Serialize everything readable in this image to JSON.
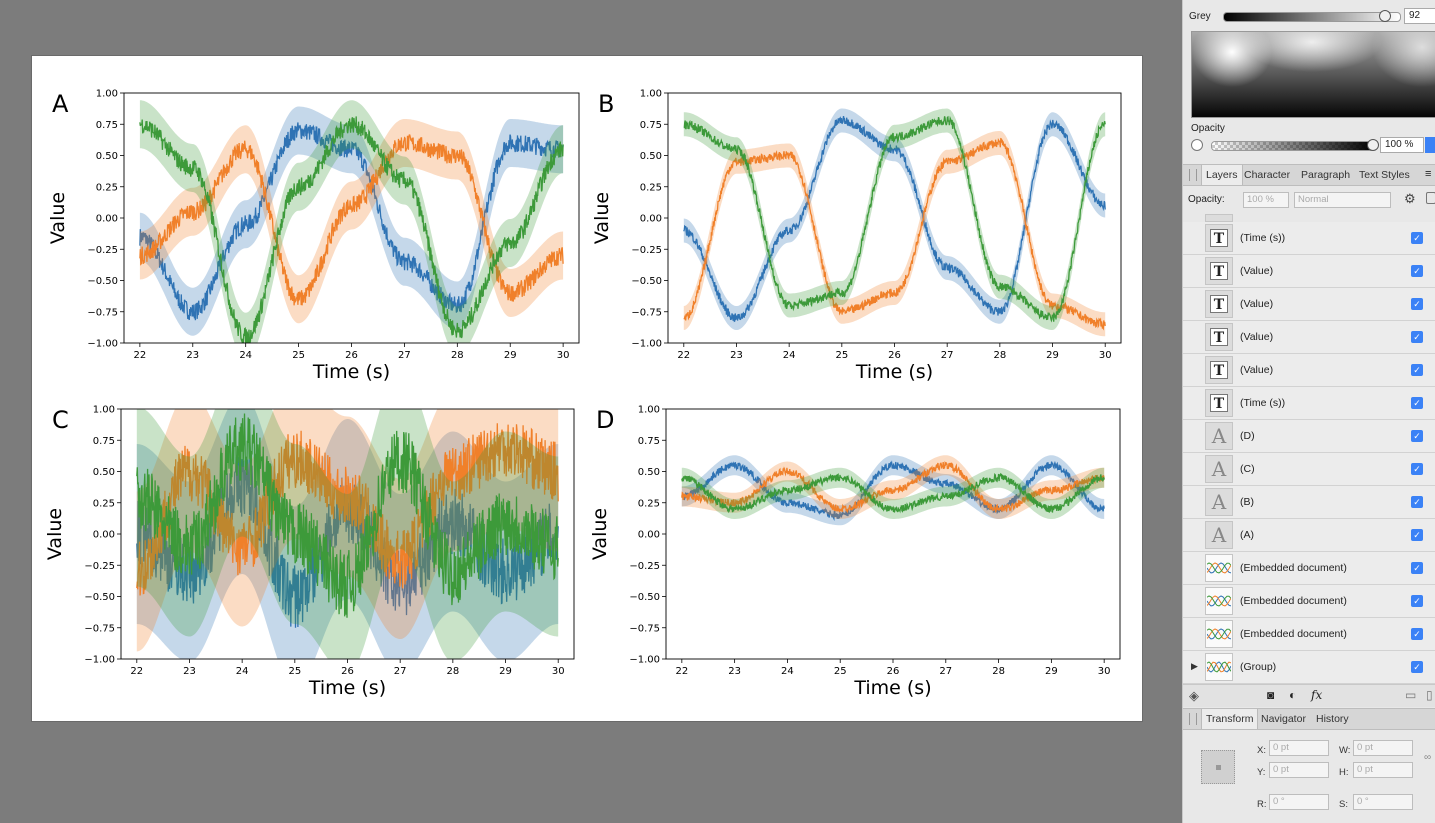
{
  "panel": {
    "color": {
      "grey_label": "Grey",
      "grey_value": "92",
      "grey_level": 0.92,
      "opacity_label": "Opacity",
      "opacity_value": "100 %",
      "opacity_level": 1.0
    },
    "layers_tabs": [
      "Layers",
      "Character",
      "Paragraph",
      "Text Styles"
    ],
    "layers_opacity_label": "Opacity:",
    "layers_opacity_value": "100 %",
    "blend_mode": "Normal",
    "layers": [
      {
        "name": "(Time (s))",
        "kind": "text",
        "visible": true
      },
      {
        "name": "(Value)",
        "kind": "text",
        "visible": true
      },
      {
        "name": "(Value)",
        "kind": "text",
        "visible": true
      },
      {
        "name": "(Value)",
        "kind": "text",
        "visible": true
      },
      {
        "name": "(Value)",
        "kind": "text",
        "visible": true
      },
      {
        "name": "(Time (s))",
        "kind": "text",
        "visible": true
      },
      {
        "name": "(D)",
        "kind": "artistic-text",
        "visible": true
      },
      {
        "name": "(C)",
        "kind": "artistic-text",
        "visible": true
      },
      {
        "name": "(B)",
        "kind": "artistic-text",
        "visible": true
      },
      {
        "name": "(A)",
        "kind": "artistic-text",
        "visible": true
      },
      {
        "name": "(Embedded document)",
        "kind": "embedded",
        "visible": true
      },
      {
        "name": "(Embedded document)",
        "kind": "embedded",
        "visible": true
      },
      {
        "name": "(Embedded document)",
        "kind": "embedded",
        "visible": true
      },
      {
        "name": "(Group)",
        "kind": "group",
        "visible": true
      }
    ],
    "transform_tabs": [
      "Transform",
      "Navigator",
      "History"
    ],
    "transform": {
      "x_label": "X:",
      "x_value": "0 pt",
      "y_label": "Y:",
      "y_value": "0 pt",
      "w_label": "W:",
      "w_value": "0 pt",
      "h_label": "H:",
      "h_value": "0 pt",
      "r_label": "R:",
      "r_value": "0 °",
      "s_label": "S:",
      "s_value": "0 °"
    },
    "icons": [
      "layers-stack-icon",
      "mask-icon",
      "adjustment-icon",
      "fx-icon",
      "new-layer-icon",
      "trash-icon",
      "settings-gear-icon",
      "lock-icon",
      "expand-arrow-icon",
      "link-icon"
    ]
  },
  "figure": {
    "colors": {
      "blue": "#2f73b4",
      "orange": "#f0802a",
      "green": "#3d9a3a"
    },
    "panels": [
      {
        "letter": "A"
      },
      {
        "letter": "B"
      },
      {
        "letter": "C"
      },
      {
        "letter": "D"
      }
    ]
  },
  "chart_data": [
    {
      "type": "line",
      "panel": "A",
      "xlabel": "Time (s)",
      "ylabel": "Value",
      "xlim": [
        21.7,
        30.3
      ],
      "ylim": [
        -1.0,
        1.0
      ],
      "xticks": [
        "22",
        "23",
        "24",
        "25",
        "26",
        "27",
        "28",
        "29",
        "30"
      ],
      "yticks": [
        "−1.00",
        "−0.75",
        "−0.50",
        "−0.25",
        "0.00",
        "0.25",
        "0.50",
        "0.75",
        "1.00"
      ],
      "x": [
        22,
        23,
        24,
        25,
        26,
        27,
        28,
        29,
        30
      ],
      "series": [
        {
          "color": "blue",
          "values": [
            -0.15,
            -0.75,
            -0.05,
            0.7,
            0.55,
            -0.35,
            -0.7,
            0.6,
            0.55
          ],
          "noise": 0.12
        },
        {
          "color": "orange",
          "values": [
            -0.3,
            0.05,
            0.55,
            -0.65,
            0.1,
            0.6,
            0.5,
            -0.6,
            -0.3
          ],
          "noise": 0.12
        },
        {
          "color": "green",
          "values": [
            0.75,
            0.4,
            -0.95,
            0.25,
            0.75,
            0.3,
            -0.9,
            -0.2,
            0.55
          ],
          "noise": 0.12
        }
      ]
    },
    {
      "type": "line",
      "panel": "B",
      "xlabel": "Time (s)",
      "ylabel": "Value",
      "xlim": [
        21.7,
        30.3
      ],
      "ylim": [
        -1.0,
        1.0
      ],
      "xticks": [
        "22",
        "23",
        "24",
        "25",
        "26",
        "27",
        "28",
        "29",
        "30"
      ],
      "yticks": [
        "−1.00",
        "−0.75",
        "−0.50",
        "−0.25",
        "0.00",
        "0.25",
        "0.50",
        "0.75",
        "1.00"
      ],
      "x": [
        22,
        23,
        24,
        25,
        26,
        27,
        28,
        29,
        30
      ],
      "series": [
        {
          "color": "blue",
          "values": [
            -0.1,
            -0.8,
            -0.1,
            0.78,
            0.55,
            -0.4,
            -0.75,
            0.75,
            0.1
          ],
          "noise": 0.06
        },
        {
          "color": "orange",
          "values": [
            -0.8,
            0.45,
            0.5,
            -0.75,
            -0.6,
            0.45,
            0.6,
            -0.7,
            -0.85
          ],
          "noise": 0.06
        },
        {
          "color": "green",
          "values": [
            0.75,
            0.55,
            -0.7,
            -0.6,
            0.65,
            0.78,
            -0.55,
            -0.8,
            0.75
          ],
          "noise": 0.06
        }
      ]
    },
    {
      "type": "line",
      "panel": "C",
      "xlabel": "Time (s)",
      "ylabel": "Value",
      "xlim": [
        21.7,
        30.3
      ],
      "ylim": [
        -1.0,
        1.0
      ],
      "xticks": [
        "22",
        "23",
        "24",
        "25",
        "26",
        "27",
        "28",
        "29",
        "30"
      ],
      "yticks": [
        "−1.00",
        "−0.75",
        "−0.50",
        "−0.25",
        "0.00",
        "0.25",
        "0.50",
        "0.75",
        "1.00"
      ],
      "x": [
        22,
        23,
        24,
        25,
        26,
        27,
        28,
        29,
        30
      ],
      "series": [
        {
          "color": "blue",
          "values": [
            0.0,
            -0.3,
            0.4,
            -0.5,
            0.2,
            -0.4,
            0.1,
            -0.3,
            0.0
          ],
          "noise": 0.45
        },
        {
          "color": "orange",
          "values": [
            -0.3,
            0.5,
            -0.1,
            0.6,
            0.3,
            -0.2,
            0.5,
            0.7,
            0.5
          ],
          "noise": 0.4
        },
        {
          "color": "green",
          "values": [
            0.3,
            -0.1,
            0.7,
            0.0,
            -0.4,
            0.6,
            -0.3,
            0.1,
            -0.1
          ],
          "noise": 0.45
        }
      ]
    },
    {
      "type": "line",
      "panel": "D",
      "xlabel": "Time (s)",
      "ylabel": "Value",
      "xlim": [
        21.7,
        30.3
      ],
      "ylim": [
        -1.0,
        1.0
      ],
      "xticks": [
        "22",
        "23",
        "24",
        "25",
        "26",
        "27",
        "28",
        "29",
        "30"
      ],
      "yticks": [
        "−1.00",
        "−0.75",
        "−0.50",
        "−0.25",
        "0.00",
        "0.25",
        "0.50",
        "0.75",
        "1.00"
      ],
      "x": [
        22,
        23,
        24,
        25,
        26,
        27,
        28,
        29,
        30
      ],
      "series": [
        {
          "color": "blue",
          "values": [
            0.3,
            0.55,
            0.25,
            0.15,
            0.55,
            0.4,
            0.2,
            0.55,
            0.2
          ],
          "noise": 0.05
        },
        {
          "color": "orange",
          "values": [
            0.3,
            0.25,
            0.5,
            0.2,
            0.35,
            0.55,
            0.2,
            0.35,
            0.45
          ],
          "noise": 0.05
        },
        {
          "color": "green",
          "values": [
            0.45,
            0.2,
            0.35,
            0.45,
            0.2,
            0.3,
            0.45,
            0.2,
            0.45
          ],
          "noise": 0.05
        }
      ]
    }
  ]
}
